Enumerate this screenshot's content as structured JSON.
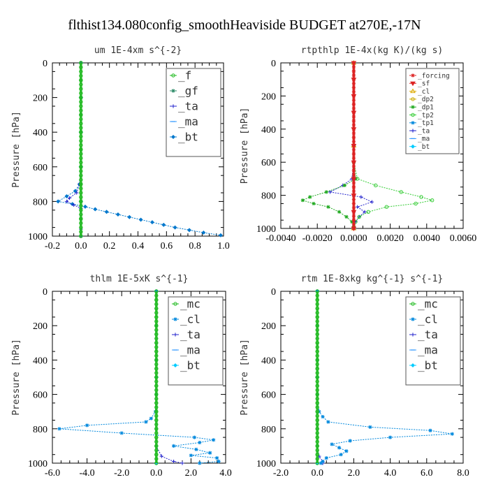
{
  "figure_title": "flthist134.080config_smoothHeaviside  BUDGET at270E,-17N",
  "chart_data": [
    {
      "type": "line",
      "title": "um   1E-4xm  s^{-2}",
      "ylabel": "Pressure [hPa]",
      "xlabel": "",
      "xlim": [
        -0.2,
        1.0
      ],
      "ylim": [
        1000,
        0
      ],
      "x_ticks": [
        -0.2,
        0.0,
        0.2,
        0.4,
        0.6,
        0.8,
        1.0
      ],
      "x_tick_labels": [
        "-0.2",
        "0.0",
        "0.2",
        "0.4",
        "0.6",
        "0.8",
        "1.0"
      ],
      "y_ticks": [
        0,
        200,
        400,
        600,
        800,
        1000
      ],
      "y_tick_labels": [
        "0",
        "200",
        "400",
        "600",
        "800",
        "1000"
      ],
      "legend_position": "top-right",
      "legend_font_size": "big",
      "series": [
        {
          "name": "_f",
          "color": "#22bb22",
          "marker": "circle",
          "p": [
            0,
            100,
            200,
            300,
            400,
            500,
            600,
            700,
            800,
            900,
            1000
          ],
          "x": [
            0,
            0,
            0,
            0,
            0,
            0,
            0,
            0,
            0,
            0,
            0
          ]
        },
        {
          "name": "_gf",
          "color": "#2a8a66",
          "marker": "star",
          "p": [
            0,
            100,
            200,
            300,
            400,
            500,
            600,
            700,
            800,
            900,
            1000
          ],
          "x": [
            0,
            0,
            0,
            0,
            0,
            0,
            0,
            0,
            0,
            0,
            0
          ]
        },
        {
          "name": "_ta",
          "color": "#2222cc",
          "marker": "plus",
          "p": [
            0,
            200,
            400,
            600,
            700,
            750,
            780,
            800,
            820,
            840,
            900,
            960,
            1000
          ],
          "x": [
            0,
            0,
            0,
            0,
            -0.01,
            -0.03,
            -0.08,
            -0.1,
            -0.05,
            0,
            0,
            0,
            0
          ]
        },
        {
          "name": "_ma",
          "color": "#3399ff",
          "marker": "dash",
          "p": [
            0,
            200,
            400,
            600,
            800,
            1000
          ],
          "x": [
            0,
            0,
            0,
            0,
            0,
            0
          ]
        },
        {
          "name": "_bt",
          "color": "#0077cc",
          "marker": "diamond",
          "p": [
            0,
            200,
            400,
            600,
            700,
            740,
            770,
            800,
            815,
            830,
            845,
            860,
            875,
            890,
            905,
            920,
            935,
            950,
            965,
            980,
            995
          ],
          "x": [
            0,
            0,
            0,
            0,
            -0.01,
            -0.04,
            -0.1,
            -0.16,
            -0.06,
            0.03,
            0.1,
            0.18,
            0.26,
            0.34,
            0.42,
            0.5,
            0.58,
            0.66,
            0.76,
            0.86,
            0.98
          ]
        }
      ]
    },
    {
      "type": "line",
      "title": "rtpthlp   1E-4x(kg K)/(kg s)",
      "ylabel": "Pressure [hPa]",
      "xlabel": "",
      "xlim": [
        -0.004,
        0.006
      ],
      "ylim": [
        1000,
        0
      ],
      "x_ticks": [
        -0.004,
        -0.002,
        0.0,
        0.002,
        0.004,
        0.006
      ],
      "x_tick_labels": [
        "-0.0040",
        "-0.0020",
        "0.0000",
        "0.0020",
        "0.0040",
        "0.0060"
      ],
      "y_ticks": [
        0,
        200,
        400,
        600,
        800,
        1000
      ],
      "y_tick_labels": [
        "0",
        "200",
        "400",
        "600",
        "800",
        "1000"
      ],
      "legend_position": "top-right",
      "legend_font_size": "small",
      "series": [
        {
          "name": "_forcing",
          "color": "#dd2222",
          "marker": "star",
          "p": [
            0,
            50,
            100,
            150,
            200,
            250,
            300,
            350,
            400,
            450,
            500,
            550,
            600,
            650,
            700,
            750,
            800,
            850,
            900,
            950,
            1000
          ],
          "x": [
            0,
            0,
            0,
            0,
            0,
            0,
            0,
            0,
            0,
            0,
            0,
            0,
            0,
            0,
            0,
            0,
            0,
            0,
            0,
            0,
            0
          ]
        },
        {
          "name": "_sf",
          "color": "#dd2222",
          "marker": "triangle-down",
          "p": [
            0,
            100,
            200,
            300,
            400,
            500,
            600,
            700,
            800,
            900,
            1000
          ],
          "x": [
            0,
            0,
            0,
            0,
            0,
            0,
            0,
            0,
            0,
            0,
            0
          ]
        },
        {
          "name": "_cl",
          "color": "#ddaa00",
          "marker": "triangle",
          "p": [
            0,
            500,
            1000
          ],
          "x": [
            0,
            0,
            0
          ]
        },
        {
          "name": "_dp2",
          "color": "#ccaa00",
          "marker": "circle",
          "p": [
            0,
            500,
            1000
          ],
          "x": [
            0,
            0,
            0
          ]
        },
        {
          "name": "_dp1",
          "color": "#22aa22",
          "marker": "star",
          "p": [
            0,
            600,
            700,
            740,
            780,
            810,
            830,
            850,
            870,
            900,
            930,
            960,
            990
          ],
          "x": [
            0,
            0,
            0.0001,
            -0.0005,
            -0.0015,
            -0.0024,
            -0.0028,
            -0.0022,
            -0.0014,
            -0.0008,
            -0.0004,
            -0.0001,
            0
          ]
        },
        {
          "name": "_tp2",
          "color": "#33cc33",
          "marker": "circle",
          "p": [
            0,
            600,
            700,
            740,
            780,
            810,
            830,
            850,
            870,
            900,
            930,
            960,
            990
          ],
          "x": [
            0,
            0,
            0.0002,
            0.0012,
            0.0026,
            0.0037,
            0.0043,
            0.0034,
            0.0018,
            0.0008,
            0.0003,
            0.0001,
            0
          ]
        },
        {
          "name": "_tp1",
          "color": "#0088dd",
          "marker": "star",
          "p": [
            0,
            600,
            700,
            800,
            900,
            1000
          ],
          "x": [
            0,
            0,
            0,
            0,
            0,
            0
          ]
        },
        {
          "name": "_ta",
          "color": "#2222cc",
          "marker": "plus",
          "p": [
            0,
            600,
            700,
            740,
            780,
            810,
            840,
            870,
            900,
            930,
            960,
            990
          ],
          "x": [
            0,
            0,
            -0.0001,
            -0.0006,
            -0.0013,
            0.0004,
            0.001,
            0.0002,
            0.0006,
            0.0003,
            0.0001,
            0
          ]
        },
        {
          "name": "_ma",
          "color": "#3399ff",
          "marker": "dash",
          "p": [
            0,
            500,
            1000
          ],
          "x": [
            0,
            0,
            0
          ]
        },
        {
          "name": "_bt",
          "color": "#00ccff",
          "marker": "diamond",
          "p": [
            0,
            500,
            1000
          ],
          "x": [
            0,
            0,
            0
          ]
        }
      ]
    },
    {
      "type": "line",
      "title": "thlm   1E-5xK  s^{-1}",
      "ylabel": "Pressure [hPa]",
      "xlabel": "",
      "xlim": [
        -6.0,
        4.0
      ],
      "ylim": [
        1000,
        0
      ],
      "x_ticks": [
        -6.0,
        -4.0,
        -2.0,
        0.0,
        2.0,
        4.0
      ],
      "x_tick_labels": [
        "-6.0",
        "-4.0",
        "-2.0",
        "0.0",
        "2.0",
        "4.0"
      ],
      "y_ticks": [
        0,
        200,
        400,
        600,
        800,
        1000
      ],
      "y_tick_labels": [
        "0",
        "200",
        "400",
        "600",
        "800",
        "1000"
      ],
      "legend_position": "top-right",
      "legend_font_size": "big",
      "series": [
        {
          "name": "_mc",
          "color": "#22bb22",
          "marker": "circle",
          "p": [
            0,
            50,
            100,
            150,
            200,
            250,
            300,
            350,
            400,
            450,
            500,
            550,
            600,
            650,
            700,
            750,
            800,
            850,
            900,
            950,
            1000
          ],
          "x": [
            0,
            0,
            0,
            0,
            0,
            0,
            0,
            0,
            0,
            0,
            0,
            0,
            0,
            0,
            0,
            0,
            0,
            0,
            0,
            0,
            0
          ]
        },
        {
          "name": "_cl",
          "color": "#0088dd",
          "marker": "star",
          "p": [
            0,
            200,
            400,
            600,
            700,
            740,
            760,
            780,
            800,
            825,
            850,
            865,
            880,
            900,
            920,
            940,
            955,
            970,
            990,
            1000
          ],
          "x": [
            0,
            0,
            0,
            0,
            -0.05,
            -0.3,
            -0.6,
            -4.0,
            -5.6,
            -2.0,
            2.2,
            3.3,
            2.5,
            1.0,
            2.3,
            3.1,
            2.0,
            3.5,
            3.6,
            2.5
          ]
        },
        {
          "name": "_ta",
          "color": "#2222cc",
          "marker": "plus",
          "p": [
            0,
            900,
            960,
            990,
            1000
          ],
          "x": [
            0,
            0,
            0.3,
            1.0,
            1.5
          ]
        },
        {
          "name": "_ma",
          "color": "#3399ff",
          "marker": "dash",
          "p": [
            0,
            500,
            1000
          ],
          "x": [
            0,
            0,
            0
          ]
        },
        {
          "name": "_bt",
          "color": "#00ccff",
          "marker": "diamond",
          "p": [
            0,
            500,
            1000
          ],
          "x": [
            0,
            0,
            0
          ]
        }
      ]
    },
    {
      "type": "line",
      "title": "rtm   1E-8xkg  kg^{-1}  s^{-1}",
      "ylabel": "Pressure [hPa]",
      "xlabel": "",
      "xlim": [
        -2.0,
        8.0
      ],
      "ylim": [
        1000,
        0
      ],
      "x_ticks": [
        -2.0,
        0.0,
        2.0,
        4.0,
        6.0,
        8.0
      ],
      "x_tick_labels": [
        "-2.0",
        "0.0",
        "2.0",
        "4.0",
        "6.0",
        "8.0"
      ],
      "y_ticks": [
        0,
        200,
        400,
        600,
        800,
        1000
      ],
      "y_tick_labels": [
        "0",
        "200",
        "400",
        "600",
        "800",
        "1000"
      ],
      "legend_position": "top-right",
      "legend_font_size": "big",
      "series": [
        {
          "name": "_mc",
          "color": "#22bb22",
          "marker": "circle",
          "p": [
            0,
            50,
            100,
            150,
            200,
            250,
            300,
            350,
            400,
            450,
            500,
            550,
            600,
            650,
            700,
            750,
            800,
            850,
            900,
            950,
            1000
          ],
          "x": [
            0,
            0,
            0,
            0,
            0,
            0,
            0,
            0,
            0,
            0,
            0,
            0,
            0,
            0,
            0,
            0,
            0,
            0,
            0,
            0,
            0
          ]
        },
        {
          "name": "_cl",
          "color": "#0088dd",
          "marker": "star",
          "p": [
            0,
            200,
            400,
            600,
            700,
            730,
            760,
            790,
            810,
            830,
            850,
            870,
            890,
            910,
            930,
            950,
            970,
            990,
            1000
          ],
          "x": [
            0,
            0,
            0,
            0,
            0.1,
            0.3,
            0.6,
            2.9,
            6.2,
            7.4,
            4.0,
            1.8,
            0.8,
            1.2,
            1.6,
            1.3,
            0.5,
            0.3,
            0.2
          ]
        },
        {
          "name": "_ta",
          "color": "#2222cc",
          "marker": "plus",
          "p": [
            0,
            900,
            960,
            990,
            1000
          ],
          "x": [
            0,
            0,
            0.1,
            0.3,
            0.3
          ]
        },
        {
          "name": "_ma",
          "color": "#3399ff",
          "marker": "dash",
          "p": [
            0,
            500,
            1000
          ],
          "x": [
            0,
            0,
            0
          ]
        },
        {
          "name": "_bt",
          "color": "#00ccff",
          "marker": "diamond",
          "p": [
            0,
            500,
            1000
          ],
          "x": [
            0,
            0,
            0
          ]
        }
      ]
    }
  ]
}
